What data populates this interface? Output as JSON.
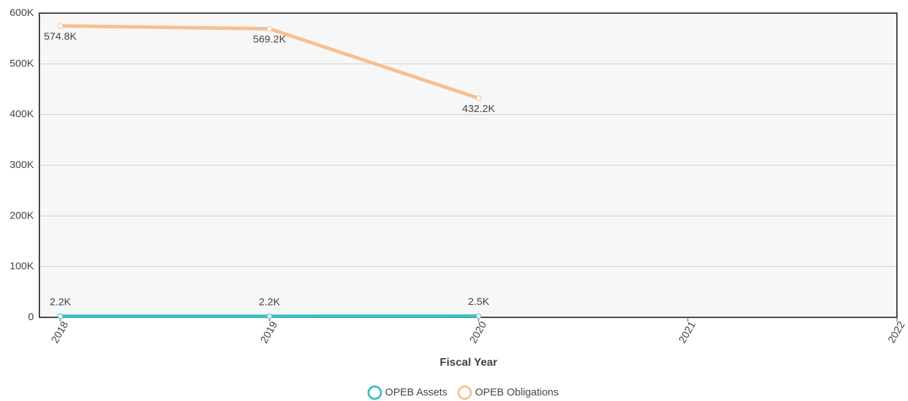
{
  "chart_data": {
    "type": "line",
    "x_label": "Fiscal Year",
    "x": [
      2018,
      2019,
      2020,
      2021,
      2022
    ],
    "xlim": [
      2017.9,
      2022
    ],
    "xticks": [
      2018,
      2019,
      2020,
      2021,
      2022
    ],
    "ylim": [
      0,
      600000
    ],
    "yticks": [
      0,
      {
        "value": 100000,
        "label": "100K"
      },
      {
        "value": 200000,
        "label": "200K"
      },
      {
        "value": 300000,
        "label": "300K"
      },
      {
        "value": 400000,
        "label": "400K"
      },
      {
        "value": 500000,
        "label": "500K"
      },
      {
        "value": 600000,
        "label": "600K"
      }
    ],
    "grid": true,
    "legend": "bottom",
    "series": [
      {
        "name": "OPEB Assets",
        "color": "#3fbfbf",
        "values": [
          2200,
          2200,
          2500,
          null,
          null
        ],
        "value_labels": [
          "2.2K",
          "2.2K",
          "2.5K",
          null,
          null
        ]
      },
      {
        "name": "OPEB Obligations",
        "color": "#f5c093",
        "values": [
          574800,
          569200,
          432200,
          null,
          null
        ],
        "value_labels": [
          "574.8K",
          "569.2K",
          "432.2K",
          null,
          null
        ]
      }
    ]
  }
}
